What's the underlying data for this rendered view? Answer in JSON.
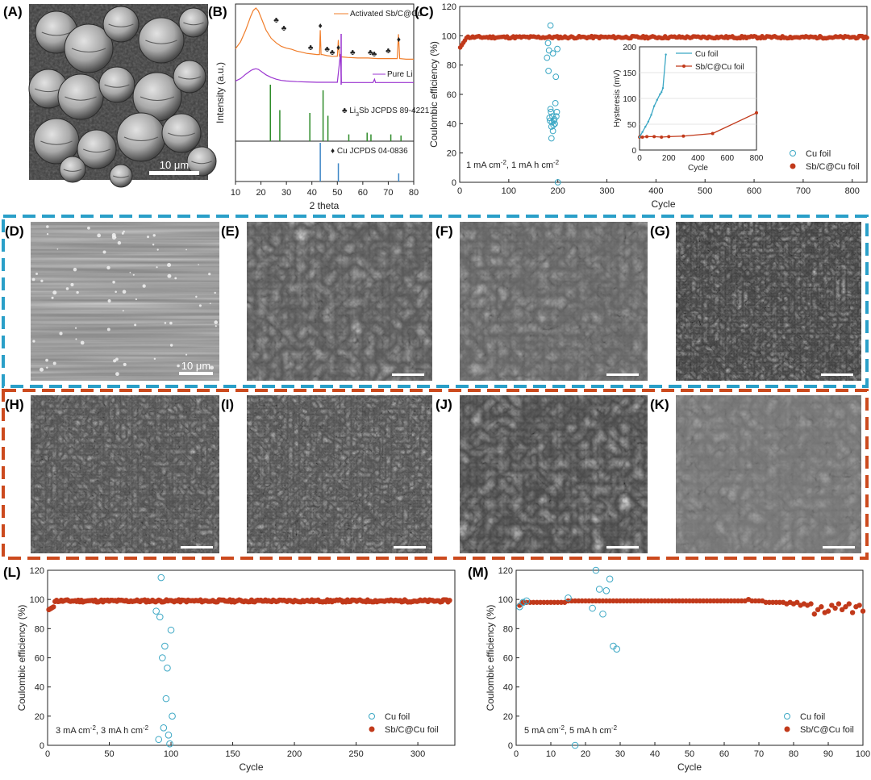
{
  "colors": {
    "cu": "#3ba7c4",
    "sbc": "#c1391a",
    "activated": "#f07d2a",
    "pureli": "#9b36d0",
    "li3sb": "#2f8c2a",
    "cu_ref": "#3d86c6",
    "frame_blue": "#2a9fc8",
    "frame_red": "#cc4a1e"
  },
  "panels": {
    "A": "(A)",
    "B": "(B)",
    "C": "(C)",
    "D": "(D)",
    "E": "(E)",
    "F": "(F)",
    "G": "(G)",
    "H": "(H)",
    "I": "(I)",
    "J": "(J)",
    "K": "(K)",
    "L": "(L)",
    "M": "(M)"
  },
  "scale_bars": {
    "A": "10 μm",
    "D": "10 μm"
  },
  "chart_data": [
    {
      "id": "B",
      "type": "line",
      "xlabel": "2 theta",
      "ylabel": "Intensity (a.u.)",
      "xlim": [
        10,
        80
      ],
      "xticks": [
        10,
        20,
        30,
        40,
        50,
        60,
        70,
        80
      ],
      "series": [
        {
          "name": "Activated Sb/C@Cu",
          "color": "#f07d2a",
          "x": [
            10,
            12,
            14,
            16,
            17,
            18,
            19,
            20,
            22,
            24,
            26,
            28,
            30,
            32,
            34,
            36,
            38,
            40,
            42,
            43,
            43.3,
            43.6,
            44,
            46,
            48,
            50,
            50.4,
            50.8,
            51.5,
            54,
            58,
            62,
            66,
            70,
            73.5,
            74,
            74.5,
            77,
            80
          ],
          "y": [
            0.3,
            0.42,
            0.62,
            0.86,
            0.96,
            1.0,
            0.95,
            0.84,
            0.62,
            0.48,
            0.4,
            0.34,
            0.31,
            0.29,
            0.26,
            0.24,
            0.22,
            0.21,
            0.2,
            0.2,
            0.62,
            0.2,
            0.2,
            0.18,
            0.17,
            0.17,
            0.45,
            0.17,
            0.16,
            0.15,
            0.14,
            0.14,
            0.13,
            0.13,
            0.13,
            0.55,
            0.13,
            0.12,
            0.12
          ]
        },
        {
          "name": "Pure Li",
          "color": "#9b36d0",
          "x": [
            10,
            12,
            14,
            16,
            17,
            18,
            19,
            20,
            22,
            24,
            26,
            28,
            30,
            34,
            38,
            42,
            46,
            50,
            51.2,
            51.6,
            52,
            56,
            60,
            64,
            64.6,
            65,
            68,
            72,
            76,
            80
          ],
          "y": [
            0.12,
            0.2,
            0.34,
            0.46,
            0.5,
            0.52,
            0.5,
            0.44,
            0.32,
            0.24,
            0.18,
            0.14,
            0.12,
            0.1,
            0.09,
            0.08,
            0.08,
            0.08,
            1.0,
            0.08,
            0.07,
            0.07,
            0.07,
            0.07,
            0.18,
            0.07,
            0.07,
            0.07,
            0.07,
            0.07
          ]
        }
      ],
      "reference_li3sb": {
        "label": "Li3Sb  JCPDS 89-4221",
        "positions": [
          23.7,
          27.4,
          39.2,
          44.4,
          46.3,
          54.5,
          61.7,
          63.2,
          71.0,
          75.0
        ],
        "heights": [
          1.0,
          0.55,
          0.5,
          0.9,
          0.45,
          0.12,
          0.15,
          0.12,
          0.12,
          0.1
        ]
      },
      "reference_cu": {
        "label": "Cu  JCPDS 04-0836",
        "positions": [
          43.3,
          50.4,
          74.1
        ],
        "heights": [
          1.0,
          0.47,
          0.21
        ]
      },
      "markers_li3sb_2theta": [
        26.0,
        29.0,
        39.5,
        46.0,
        48.0,
        56.0,
        63.0,
        64.5,
        70.0
      ],
      "markers_cu_2theta": [
        43.3,
        50.4,
        74.1
      ]
    },
    {
      "id": "C",
      "type": "scatter",
      "xlabel": "Cycle",
      "ylabel": "Coulombic efficiency (%)",
      "xlim": [
        0,
        830
      ],
      "ylim": [
        0,
        120
      ],
      "xticks": [
        0,
        100,
        200,
        300,
        400,
        500,
        600,
        700,
        800
      ],
      "yticks": [
        0,
        20,
        40,
        60,
        80,
        100,
        120
      ],
      "annotation": "1 mA cm⁻², 1 mA h cm⁻²",
      "legend": [
        "Cu foil",
        "Sb/C@Cu foil"
      ],
      "series": [
        {
          "name": "Cu foil",
          "x": [
            178,
            180,
            181,
            182,
            183,
            184,
            185,
            185,
            186,
            187,
            187,
            188,
            189,
            190,
            190,
            191,
            192,
            193,
            194,
            195,
            196,
            197,
            198,
            199,
            200
          ],
          "y": [
            85,
            95,
            76,
            90,
            44,
            42,
            50,
            107,
            48,
            30,
            38,
            41,
            45,
            88,
            35,
            39,
            42,
            43,
            40,
            54,
            72,
            45,
            48,
            91,
            0
          ]
        },
        {
          "name": "Sb/C@Cu foil",
          "steady_range": [
            1,
            830
          ],
          "steady_value": 99,
          "start_value": 92
        }
      ],
      "inset": {
        "xlabel": "Cycle",
        "ylabel": "Hysteresis (mV)",
        "xlim": [
          0,
          800
        ],
        "ylim": [
          0,
          200
        ],
        "xticks": [
          0,
          200,
          400,
          600,
          800
        ],
        "yticks": [
          0,
          50,
          100,
          150,
          200
        ],
        "series": [
          {
            "name": "Cu foil",
            "x": [
              0,
              20,
              40,
              60,
              80,
              100,
              120,
              140,
              150,
              160,
              180
            ],
            "y": [
              25,
              35,
              45,
              55,
              68,
              85,
              97,
              108,
              112,
              120,
              185
            ]
          },
          {
            "name": "Sb/C@Cu foil",
            "x": [
              0,
              20,
              50,
              100,
              150,
              200,
              300,
              500,
              800
            ],
            "y": [
              25,
              25,
              26,
              26,
              25,
              26,
              27,
              32,
              72
            ]
          }
        ]
      }
    },
    {
      "id": "L",
      "type": "scatter",
      "xlabel": "Cycle",
      "ylabel": "Coulombic efficiency (%)",
      "xlim": [
        0,
        330
      ],
      "ylim": [
        0,
        120
      ],
      "xticks": [
        0,
        50,
        100,
        150,
        200,
        250,
        300
      ],
      "yticks": [
        0,
        20,
        40,
        60,
        80,
        100,
        120
      ],
      "annotation": "3 mA cm⁻², 3 mA h cm⁻²",
      "legend": [
        "Cu foil",
        "Sb/C@Cu foil"
      ],
      "series": [
        {
          "name": "Cu foil",
          "x": [
            88,
            90,
            91,
            92,
            93,
            94,
            95,
            96,
            97,
            98,
            99,
            100,
            101
          ],
          "y": [
            92,
            4,
            88,
            115,
            60,
            12,
            68,
            32,
            53,
            7,
            1,
            79,
            20
          ]
        },
        {
          "name": "Sb/C@Cu foil",
          "steady_range": [
            1,
            327
          ],
          "steady_value": 99,
          "start_value": 93
        }
      ]
    },
    {
      "id": "M",
      "type": "scatter",
      "xlabel": "Cycle",
      "ylabel": "Coulombic efficiency (%)",
      "xlim": [
        0,
        100
      ],
      "ylim": [
        0,
        120
      ],
      "xticks": [
        0,
        10,
        20,
        30,
        40,
        50,
        60,
        70,
        80,
        90,
        100
      ],
      "yticks": [
        0,
        20,
        40,
        60,
        80,
        100,
        120
      ],
      "annotation": "5 mA cm⁻², 5 mA h cm⁻²",
      "legend": [
        "Cu foil",
        "Sb/C@Cu foil"
      ],
      "series": [
        {
          "name": "Cu foil",
          "x": [
            1,
            2,
            3,
            15,
            17,
            22,
            23,
            24,
            25,
            26,
            27,
            28,
            29
          ],
          "y": [
            95,
            98,
            99,
            101,
            0,
            94,
            120,
            107,
            90,
            106,
            114,
            68,
            66
          ]
        },
        {
          "name": "Sb/C@Cu foil",
          "x": [
            1,
            2,
            3,
            4,
            5,
            6,
            7,
            8,
            9,
            10,
            11,
            12,
            13,
            14,
            15,
            16,
            17,
            18,
            19,
            20,
            21,
            22,
            23,
            24,
            25,
            26,
            27,
            28,
            29,
            30,
            31,
            32,
            33,
            34,
            35,
            36,
            37,
            38,
            39,
            40,
            41,
            42,
            43,
            44,
            45,
            46,
            47,
            48,
            49,
            50,
            51,
            52,
            53,
            54,
            55,
            56,
            57,
            58,
            59,
            60,
            61,
            62,
            63,
            64,
            65,
            66,
            67,
            68,
            69,
            70,
            71,
            72,
            73,
            74,
            75,
            76,
            77,
            78,
            79,
            80,
            81,
            82,
            83,
            84,
            85,
            86,
            87,
            88,
            89,
            90,
            91,
            92,
            93,
            94,
            95,
            96,
            97,
            98,
            99,
            100
          ],
          "y": [
            96,
            98,
            98,
            98,
            98,
            98,
            98,
            98,
            98,
            98,
            98,
            98,
            98,
            98,
            99,
            99,
            99,
            99,
            99,
            99,
            99,
            99,
            99,
            99,
            99,
            99,
            99,
            99,
            99,
            99,
            99,
            99,
            99,
            99,
            99,
            99,
            99,
            99,
            99,
            99,
            99,
            99,
            99,
            99,
            99,
            99,
            99,
            99,
            99,
            99,
            99,
            99,
            99,
            99,
            99,
            99,
            99,
            99,
            99,
            99,
            99,
            99,
            99,
            99,
            99,
            99,
            100,
            99,
            99,
            99,
            99,
            98,
            98,
            98,
            98,
            98,
            98,
            97,
            98,
            97,
            98,
            96,
            97,
            96,
            97,
            90,
            93,
            95,
            91,
            92,
            96,
            94,
            97,
            93,
            95,
            97,
            91,
            95,
            96,
            92
          ]
        }
      ]
    }
  ]
}
